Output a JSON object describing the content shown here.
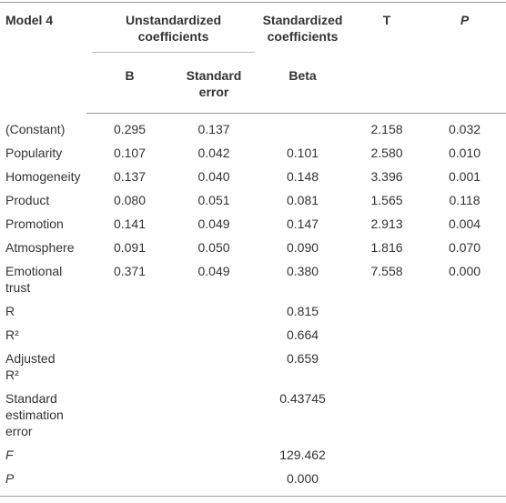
{
  "header": {
    "model": "Model 4",
    "unstandardized": "Unstandardized coefficients",
    "standardized": "Standardized coefficients",
    "t": "T",
    "p": "P",
    "b": "B",
    "se": "Standard error",
    "beta": "Beta"
  },
  "rows": [
    {
      "label": "(Constant)",
      "b": "0.295",
      "se": "0.137",
      "t": "2.158",
      "p": "0.032"
    },
    {
      "label": "Popularity",
      "b": "0.107",
      "se": "0.042",
      "beta": "0.101",
      "t": "2.580",
      "p": "0.010"
    },
    {
      "label": "Homogeneity",
      "b": "0.137",
      "se": "0.040",
      "beta": "0.148",
      "t": "3.396",
      "p": "0.001"
    },
    {
      "label": "Product",
      "b": "0.080",
      "se": "0.051",
      "beta": "0.081",
      "t": "1.565",
      "p": "0.118"
    },
    {
      "label": "Promotion",
      "b": "0.141",
      "se": "0.049",
      "beta": "0.147",
      "t": "2.913",
      "p": "0.004"
    },
    {
      "label": "Atmosphere",
      "b": "0.091",
      "se": "0.050",
      "beta": "0.090",
      "t": "1.816",
      "p": "0.070"
    },
    {
      "label": "Emotional trust",
      "b": "0.371",
      "se": "0.049",
      "beta": "0.380",
      "t": "7.558",
      "p": "0.000"
    },
    {
      "label": "R",
      "beta": "0.815"
    },
    {
      "label": "R²",
      "beta": "0.664"
    },
    {
      "label": "Adjusted R²",
      "beta": "0.659"
    },
    {
      "label": "Standard estimation error",
      "beta": "0.43745"
    },
    {
      "label": "F",
      "beta": "129.462",
      "italic": true
    },
    {
      "label": "P",
      "beta": "0.000",
      "italic": true
    }
  ]
}
